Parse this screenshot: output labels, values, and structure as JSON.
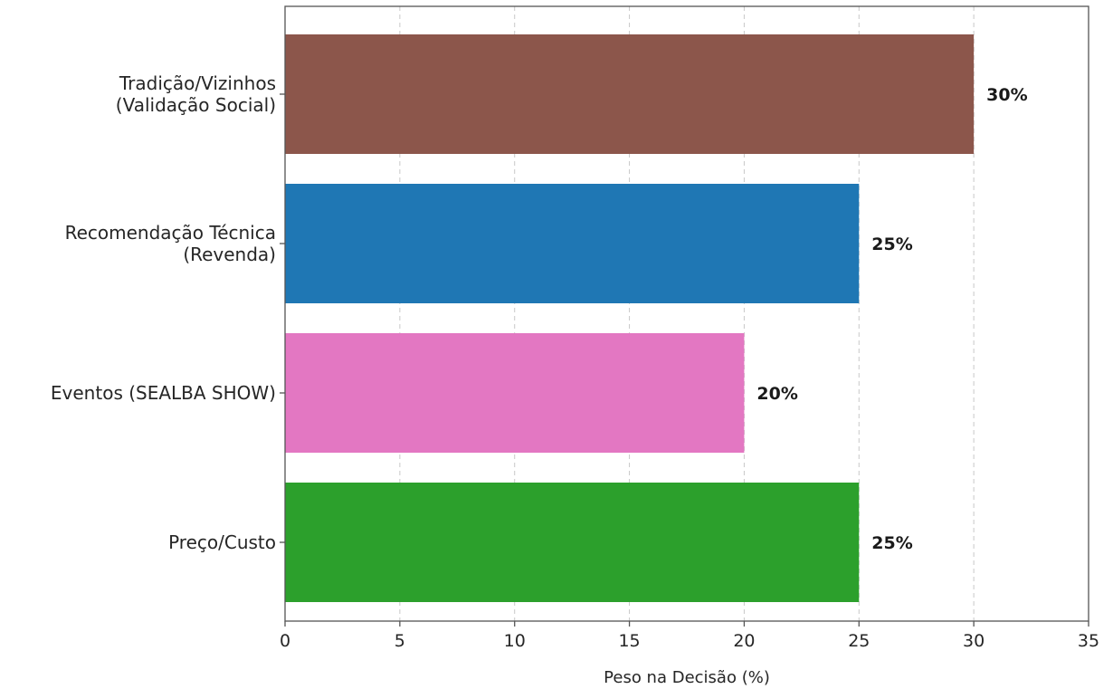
{
  "chart_data": {
    "type": "bar",
    "orientation": "horizontal",
    "title": "",
    "xlabel": "Peso na Decisão (%)",
    "ylabel": "",
    "xlim": [
      0,
      35
    ],
    "xticks": [
      0,
      5,
      10,
      15,
      20,
      25,
      30,
      35
    ],
    "grid": "x-dashed",
    "categories": [
      [
        "Tradição/Vizinhos",
        "(Validação Social)"
      ],
      [
        "Recomendação Técnica",
        "(Revenda)"
      ],
      [
        "Eventos (SEALBA SHOW)"
      ],
      [
        "Preço/Custo"
      ]
    ],
    "values": [
      30,
      25,
      20,
      25
    ],
    "data_labels": [
      "30%",
      "25%",
      "20%",
      "25%"
    ],
    "colors": [
      "#8c564b",
      "#1f77b4",
      "#e377c2",
      "#2ca02c"
    ]
  }
}
